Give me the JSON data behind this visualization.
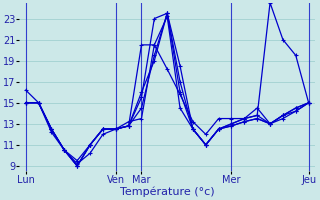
{
  "background_color": "#cce8e8",
  "grid_color": "#99cccc",
  "line_color": "#0000cc",
  "xlabel": "Température (°c)",
  "xlabel_fontsize": 8,
  "tick_label_color": "#2222aa",
  "tick_fontsize": 7,
  "day_labels": [
    "Lun",
    "Ven",
    "Mar",
    "Mer",
    "Jeu"
  ],
  "ylim": [
    8.5,
    24.5
  ],
  "yticks": [
    9,
    11,
    13,
    15,
    17,
    19,
    21,
    23
  ],
  "series": [
    [
      16.2,
      15.0,
      12.2,
      10.5,
      9.2,
      10.2,
      12.0,
      12.5,
      13.2,
      13.5,
      20.5,
      18.2,
      15.8,
      13.2,
      12.0,
      13.5,
      13.5,
      13.5,
      14.5,
      13.0,
      13.5,
      14.2,
      15.0
    ],
    [
      15.0,
      15.0,
      12.5,
      10.5,
      9.0,
      11.0,
      12.5,
      12.5,
      12.8,
      15.5,
      23.0,
      23.5,
      18.5,
      12.5,
      11.0,
      12.5,
      13.0,
      13.5,
      13.8,
      13.0,
      13.8,
      14.5,
      15.0
    ],
    [
      15.0,
      15.0,
      12.5,
      10.5,
      9.0,
      11.0,
      12.5,
      12.5,
      12.8,
      20.5,
      20.5,
      23.2,
      14.5,
      12.5,
      11.0,
      12.5,
      13.0,
      13.5,
      13.8,
      24.5,
      21.0,
      19.5,
      15.0
    ],
    [
      15.0,
      15.0,
      12.5,
      10.5,
      9.0,
      11.0,
      12.5,
      12.5,
      12.8,
      16.0,
      19.0,
      23.5,
      16.0,
      12.5,
      11.0,
      12.5,
      12.8,
      13.2,
      13.5,
      13.0,
      13.8,
      14.2,
      15.0
    ],
    [
      15.0,
      15.0,
      12.5,
      10.5,
      9.5,
      11.0,
      12.5,
      12.5,
      12.8,
      14.5,
      19.5,
      23.5,
      17.0,
      12.5,
      11.0,
      12.5,
      12.8,
      13.2,
      13.5,
      13.0,
      13.8,
      14.5,
      15.0
    ]
  ],
  "num_points": 23,
  "day_tick_positions": [
    0,
    7,
    9,
    16,
    22
  ],
  "vline_positions": [
    0,
    7,
    9,
    16,
    22
  ],
  "xlim": [
    -0.5,
    22.5
  ],
  "marker_size": 2.5,
  "line_width": 0.9
}
